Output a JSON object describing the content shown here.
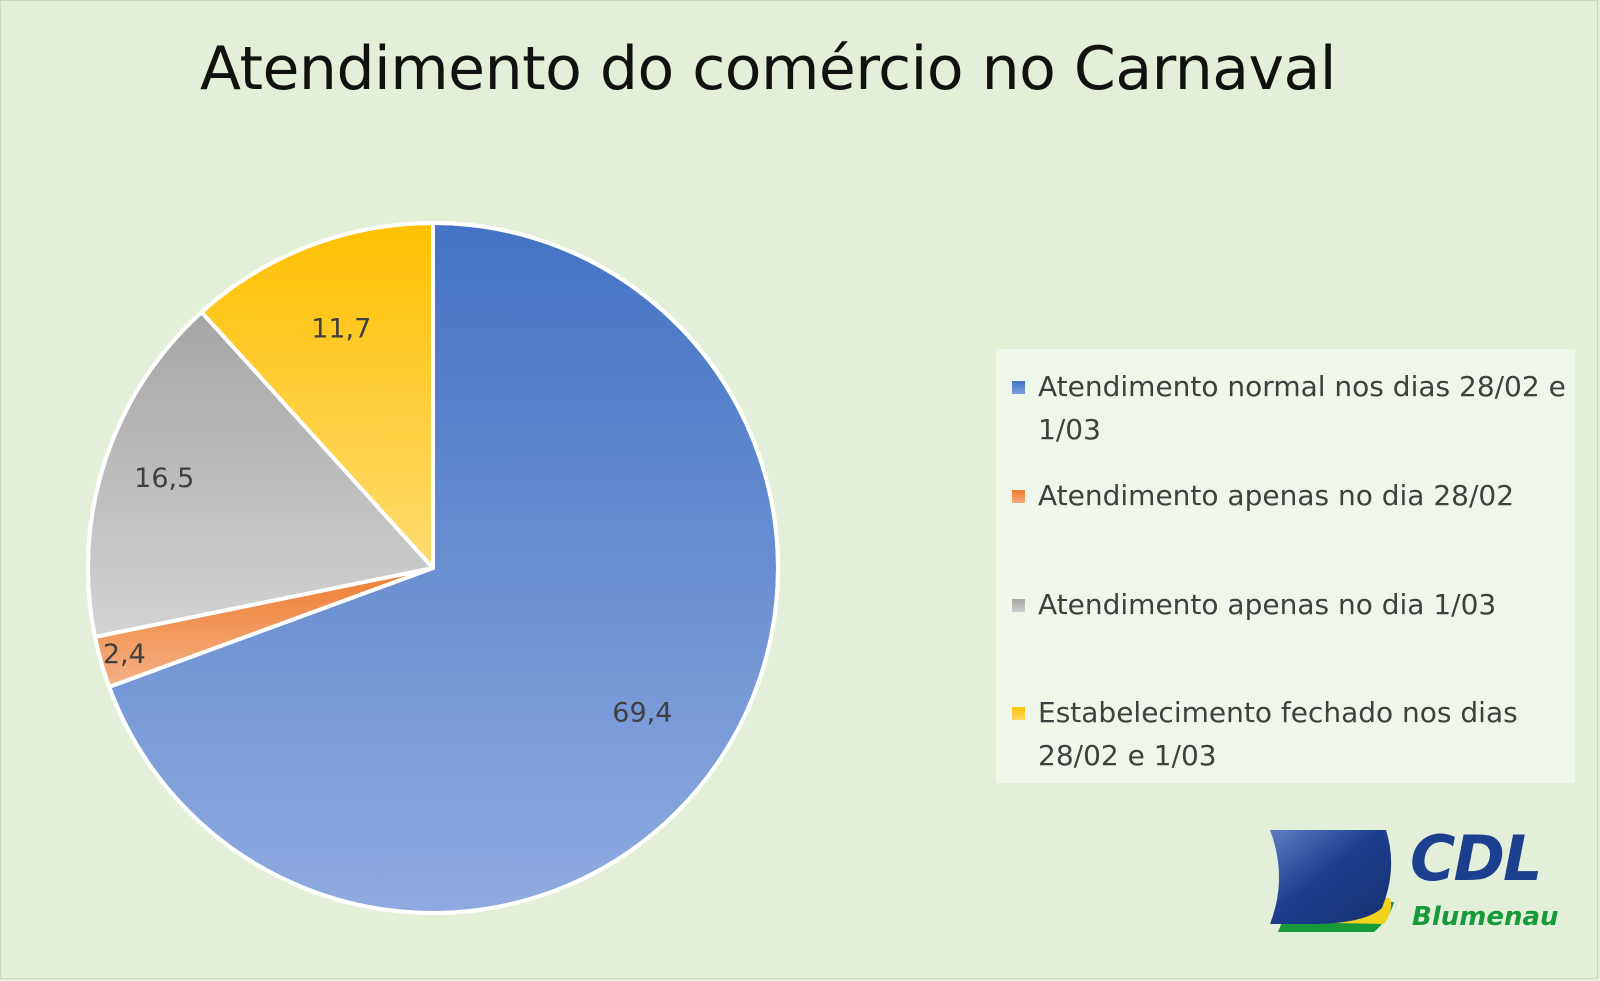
{
  "chart_data": {
    "type": "pie",
    "title": "Atendimento do comércio no Carnaval",
    "series": [
      {
        "name": "Atendimento normal nos dias 28/02 e 1/03",
        "value": 69.4,
        "label": "69,4",
        "color": "#4472c4"
      },
      {
        "name": "Atendimento apenas no dia 28/02",
        "value": 2.4,
        "label": "2,4",
        "color": "#ed7d31"
      },
      {
        "name": "Atendimento apenas no dia 1/03",
        "value": 16.5,
        "label": "16,5",
        "color": "#a5a5a5"
      },
      {
        "name": "Estabelecimento fechado nos dias 28/02 e 1/03",
        "value": 11.7,
        "label": "11,7",
        "color": "#ffc000"
      }
    ],
    "legend_position": "right"
  },
  "legend": {
    "items": [
      "Atendimento normal nos dias 28/02 e 1/03",
      "Atendimento apenas no dia 28/02",
      "Atendimento apenas no dia 1/03",
      "Estabelecimento fechado nos dias 28/02 e 1/03"
    ]
  },
  "logo": {
    "name": "CDL",
    "city": "Blumenau",
    "colors": {
      "blue": "#1d3f8f",
      "green": "#179a3a",
      "yellow": "#f2d21b"
    }
  }
}
